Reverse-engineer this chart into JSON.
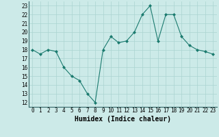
{
  "x": [
    0,
    1,
    2,
    3,
    4,
    5,
    6,
    7,
    8,
    9,
    10,
    11,
    12,
    13,
    14,
    15,
    16,
    17,
    18,
    19,
    20,
    21,
    22,
    23
  ],
  "y": [
    18,
    17.5,
    18,
    17.8,
    16,
    15,
    14.5,
    13,
    12,
    18,
    19.5,
    18.8,
    19,
    20,
    22,
    23,
    19,
    22,
    22,
    19.5,
    18.5,
    18,
    17.8,
    17.5
  ],
  "line_color": "#1a7a6e",
  "marker_color": "#1a7a6e",
  "bg_color": "#cceae8",
  "grid_color": "#aad4d0",
  "xlabel": "Humidex (Indice chaleur)",
  "xlim": [
    -0.5,
    23.5
  ],
  "ylim": [
    11.5,
    23.5
  ],
  "yticks": [
    12,
    13,
    14,
    15,
    16,
    17,
    18,
    19,
    20,
    21,
    22,
    23
  ],
  "xticks": [
    0,
    1,
    2,
    3,
    4,
    5,
    6,
    7,
    8,
    9,
    10,
    11,
    12,
    13,
    14,
    15,
    16,
    17,
    18,
    19,
    20,
    21,
    22,
    23
  ],
  "tick_fontsize": 5.5,
  "xlabel_fontsize": 7
}
